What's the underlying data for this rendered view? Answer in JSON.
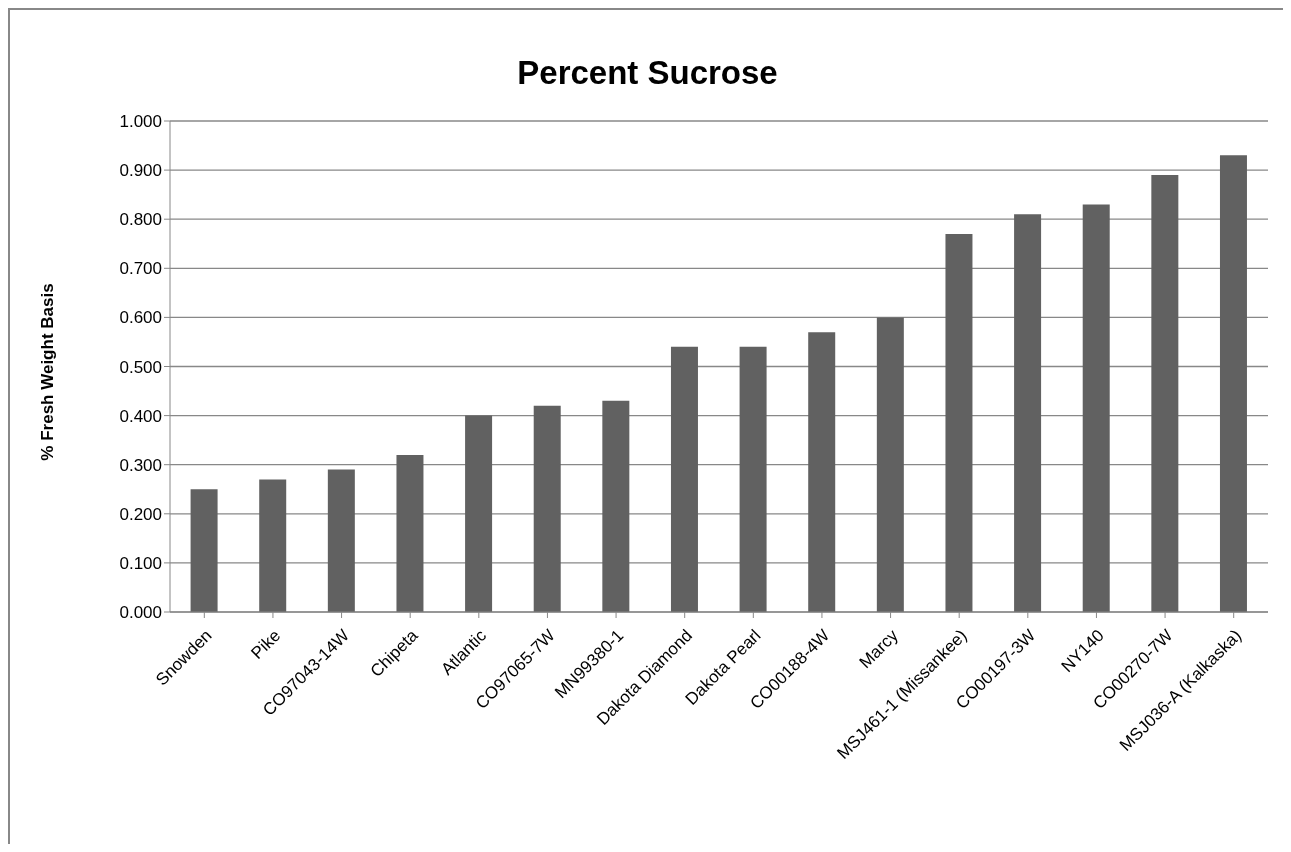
{
  "chart_data": {
    "type": "bar",
    "title": "Percent Sucrose",
    "ylabel": "% Fresh Weight Basis",
    "categories": [
      "Snowden",
      "Pike",
      "CO97043-14W",
      "Chipeta",
      "Atlantic",
      "CO97065-7W",
      "MN99380-1",
      "Dakota Diamond",
      "Dakota Pearl",
      "CO00188-4W",
      "Marcy",
      "MSJ461-1 (Missankee)",
      "CO00197-3W",
      "NY140",
      "CO00270-7W",
      "MSJ036-A (Kalkaska)"
    ],
    "values": [
      0.25,
      0.27,
      0.29,
      0.32,
      0.4,
      0.42,
      0.43,
      0.54,
      0.54,
      0.57,
      0.6,
      0.77,
      0.81,
      0.83,
      0.89,
      0.93
    ],
    "color": "#616161",
    "ylim": [
      0,
      1
    ],
    "yticks": [
      {
        "value": 0,
        "label": "0.000"
      },
      {
        "value": 0.1,
        "label": "0.100"
      },
      {
        "value": 0.2,
        "label": "0.200"
      },
      {
        "value": 0.3,
        "label": "0.300"
      },
      {
        "value": 0.4,
        "label": "0.400"
      },
      {
        "value": 0.5,
        "label": "0.500"
      },
      {
        "value": 0.6,
        "label": "0.600"
      },
      {
        "value": 0.7,
        "label": "0.700"
      },
      {
        "value": 0.8,
        "label": "0.800"
      },
      {
        "value": 0.9,
        "label": "0.900"
      },
      {
        "value": 1,
        "label": "1.000"
      }
    ],
    "grid": "y",
    "legend": false
  }
}
